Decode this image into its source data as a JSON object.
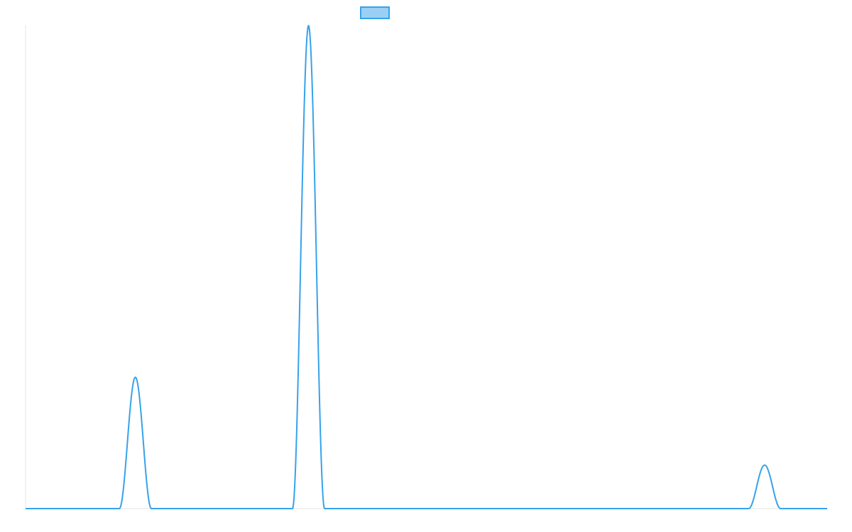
{
  "chart_data": {
    "type": "line",
    "xlim": [
      0,
      100
    ],
    "ylim": [
      0,
      100
    ],
    "grid": false,
    "legend_placement": "top-center",
    "colors": {
      "line": "#36a2eb",
      "legend_fill": "#9ad0f5",
      "axis": "#e6e6e6"
    },
    "series": [
      {
        "peaks": [
          {
            "center": 13.7,
            "height": 27.2,
            "half_width": 2.0
          },
          {
            "center": 35.3,
            "height": 100,
            "half_width": 2.0
          },
          {
            "center": 92.2,
            "height": 9.0,
            "half_width": 2.0
          }
        ]
      }
    ]
  }
}
